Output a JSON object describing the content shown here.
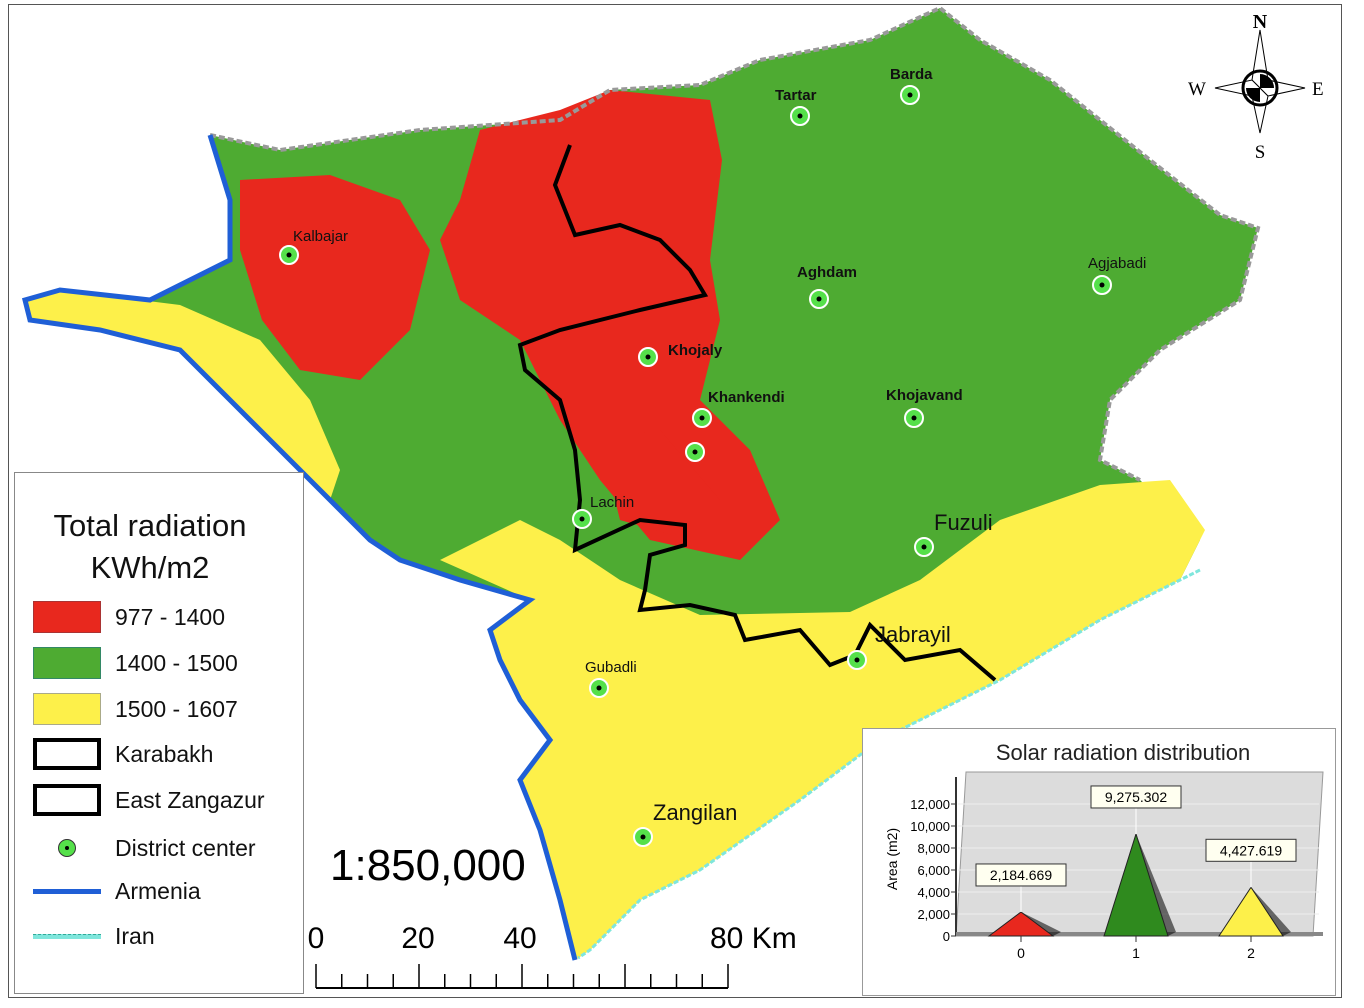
{
  "map": {
    "districts": [
      {
        "name": "Tartar"
      },
      {
        "name": "Barda"
      },
      {
        "name": "Kalbajar"
      },
      {
        "name": "Aghdam"
      },
      {
        "name": "Agjabadi"
      },
      {
        "name": "Khojaly"
      },
      {
        "name": "Khankendi"
      },
      {
        "name": "Khojavand"
      },
      {
        "name": "Lachin"
      },
      {
        "name": "Fuzuli"
      },
      {
        "name": "Jabrayil"
      },
      {
        "name": "Gubadli"
      },
      {
        "name": "Zangilan"
      }
    ],
    "compass": {
      "n": "N",
      "s": "S",
      "e": "E",
      "w": "W"
    },
    "scale_ratio": "1:850,000",
    "scale_bar": {
      "labels": [
        "0",
        "20",
        "40",
        "80 Km"
      ]
    },
    "colors": {
      "low": "#e8281e",
      "mid": "#4eab32",
      "high": "#fdf04a",
      "armenia": "#1f5fd6",
      "iran": "#7fe6dc",
      "karabakh": "#000000"
    }
  },
  "legend": {
    "title_line1": "Total radiation",
    "title_line2": "KWh/m2",
    "items": [
      {
        "label": "977 - 1400",
        "color": "#e8281e"
      },
      {
        "label": "1400 - 1500",
        "color": "#4eab32"
      },
      {
        "label": "1500 - 1607",
        "color": "#fdf04a"
      },
      {
        "label": "Karabakh"
      },
      {
        "label": "East Zangazur"
      },
      {
        "label": "District center"
      },
      {
        "label": "Armenia"
      },
      {
        "label": "Iran"
      }
    ]
  },
  "chart_data": {
    "type": "bar",
    "title": "Solar radiation distribution",
    "ylabel": "Area (m2)",
    "xlabel": "",
    "categories": [
      "0",
      "1",
      "2"
    ],
    "values": [
      2184.669,
      9275.302,
      4427.619
    ],
    "data_labels": [
      "2,184.669",
      "9,275.302",
      "4,427.619"
    ],
    "colors": [
      "#e8281e",
      "#2f8a1e",
      "#fdf04a"
    ],
    "yticks": [
      "0",
      "2,000",
      "4,000",
      "6,000",
      "8,000",
      "10,000",
      "12,000"
    ],
    "ylim": [
      0,
      12000
    ],
    "shape": "pyramid",
    "grid": true
  }
}
